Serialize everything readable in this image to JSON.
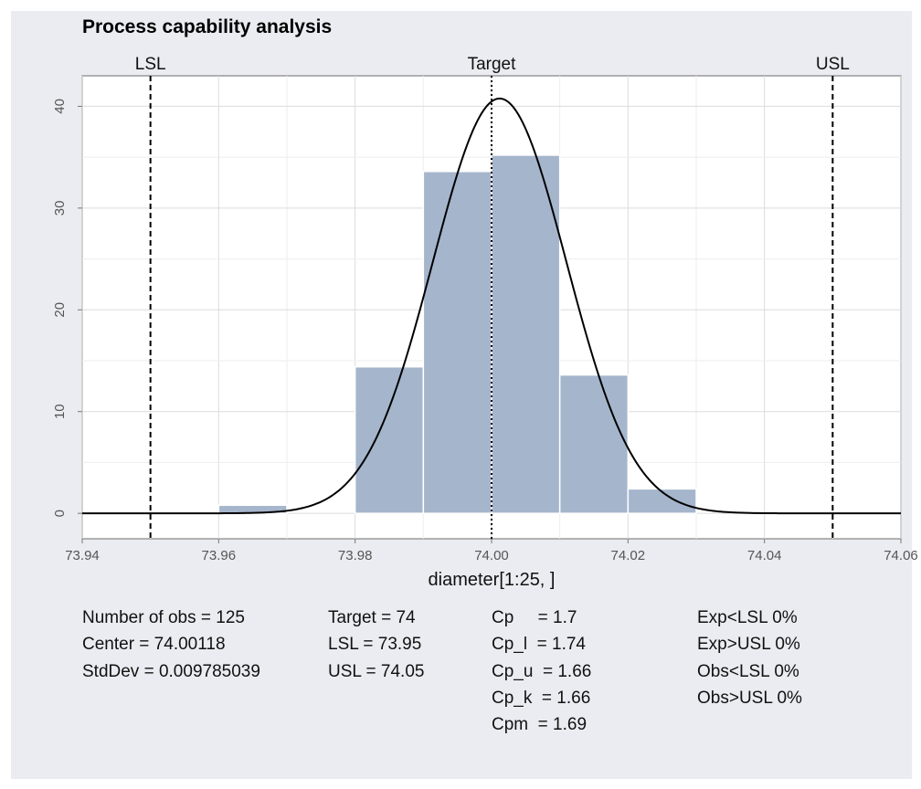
{
  "chart_data": {
    "type": "bar",
    "title": "Process capability analysis",
    "xlabel": "diameter[1:25, ]",
    "ylabel": "",
    "xlim": [
      73.94,
      74.06
    ],
    "ylim": [
      -2.5,
      43
    ],
    "x_ticks": [
      73.94,
      73.96,
      73.98,
      74.0,
      74.02,
      74.04,
      74.06
    ],
    "x_tick_labels": [
      "73.94",
      "73.96",
      "73.98",
      "74.00",
      "74.02",
      "74.04",
      "74.06"
    ],
    "y_ticks": [
      0,
      10,
      20,
      30,
      40
    ],
    "y_tick_labels": [
      "0",
      "10",
      "20",
      "30",
      "40"
    ],
    "bins": [
      {
        "x0": 73.96,
        "x1": 73.97,
        "value": 0.8
      },
      {
        "x0": 73.98,
        "x1": 73.99,
        "value": 14.4
      },
      {
        "x0": 73.99,
        "x1": 74.0,
        "value": 33.6
      },
      {
        "x0": 74.0,
        "x1": 74.01,
        "value": 35.2
      },
      {
        "x0": 74.01,
        "x1": 74.02,
        "value": 13.6
      },
      {
        "x0": 74.02,
        "x1": 74.03,
        "value": 2.4
      }
    ],
    "normal_curve": {
      "mean": 74.00118,
      "sd": 0.009785039
    },
    "reference_lines": [
      {
        "label": "LSL",
        "x": 73.95,
        "style": "dashed"
      },
      {
        "label": "Target",
        "x": 74.0,
        "style": "dotted"
      },
      {
        "label": "USL",
        "x": 74.05,
        "style": "dashed"
      }
    ],
    "grid": true,
    "bar_color": "#a5b5cc",
    "curve_color": "#000000"
  },
  "stats": {
    "col1": [
      "Number of obs = 125",
      "Center = 74.00118",
      "StdDev = 0.009785039"
    ],
    "col2": [
      "Target = 74",
      "LSL = 73.95",
      "USL = 74.05"
    ],
    "col3": [
      "Cp     = 1.7",
      "Cp_l  = 1.74",
      "Cp_u  = 1.66",
      "Cp_k  = 1.66",
      "Cpm  = 1.69"
    ],
    "col4": [
      "Exp<LSL 0%",
      "Exp>USL 0%",
      "Obs<LSL 0%",
      "Obs>USL 0%"
    ]
  }
}
